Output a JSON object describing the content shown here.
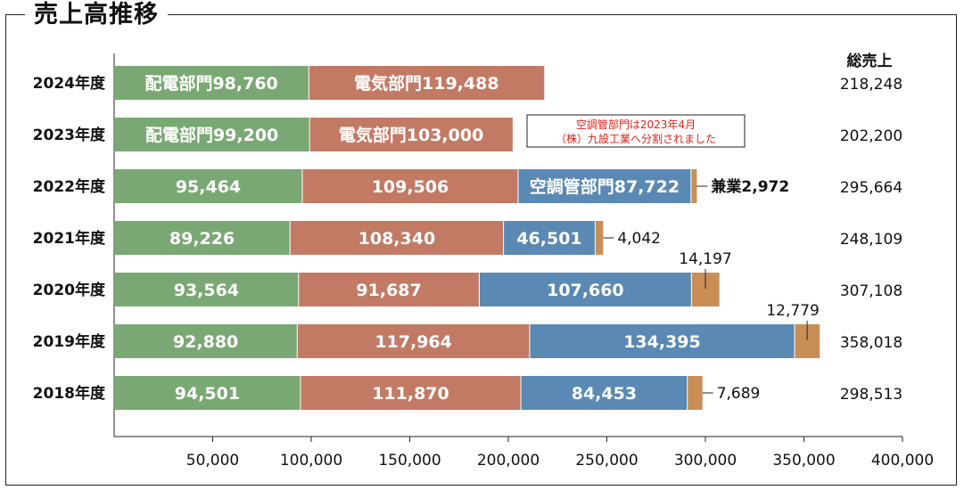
{
  "chart_data": {
    "type": "bar",
    "orientation": "horizontal",
    "stacked": true,
    "title": "売上高推移",
    "total_header": "総売上",
    "categories": [
      "2024年度",
      "2023年度",
      "2022年度",
      "2021年度",
      "2020年度",
      "2019年度",
      "2018年度"
    ],
    "series": [
      {
        "color": "#7aa874",
        "values": [
          98760,
          99200,
          95464,
          89226,
          93564,
          92880,
          94501
        ]
      },
      {
        "color": "#c27a65",
        "values": [
          119488,
          103000,
          109506,
          108340,
          91687,
          117964,
          111870
        ]
      },
      {
        "color": "#5a89b3",
        "values": [
          0,
          0,
          87722,
          46501,
          107660,
          134395,
          84453
        ]
      },
      {
        "color": "#c98e55",
        "values": [
          0,
          0,
          2972,
          4042,
          14197,
          12779,
          7689
        ]
      }
    ],
    "bar_labels": [
      [
        "配電部門98,760",
        "電気部門119,488",
        "",
        ""
      ],
      [
        "配電部門99,200",
        "電気部門103,000",
        "",
        ""
      ],
      [
        "95,464",
        "109,506",
        "空調管部門87,722",
        "兼業2,972"
      ],
      [
        "89,226",
        "108,340",
        "46,501",
        "4,042"
      ],
      [
        "93,564",
        "91,687",
        "107,660",
        "14,197"
      ],
      [
        "92,880",
        "117,964",
        "134,395",
        "12,779"
      ],
      [
        "94,501",
        "111,870",
        "84,453",
        "7,689"
      ]
    ],
    "totals": [
      "218,248",
      "202,200",
      "295,664",
      "248,109",
      "307,108",
      "358,018",
      "298,513"
    ],
    "xlim": [
      0,
      400000
    ],
    "xticks": [
      50000,
      100000,
      150000,
      200000,
      250000,
      300000,
      350000,
      400000
    ],
    "xtick_labels": [
      "50,000",
      "100,000",
      "150,000",
      "200,000",
      "250,000",
      "300,000",
      "350,000",
      "400,000"
    ],
    "annotation": {
      "lines": [
        "空調管部門は2023年4月",
        "（株）九設工業へ分割されました"
      ],
      "color": "#e0221b",
      "attached_to": "2023年度"
    },
    "grid": false,
    "legend": "none"
  }
}
